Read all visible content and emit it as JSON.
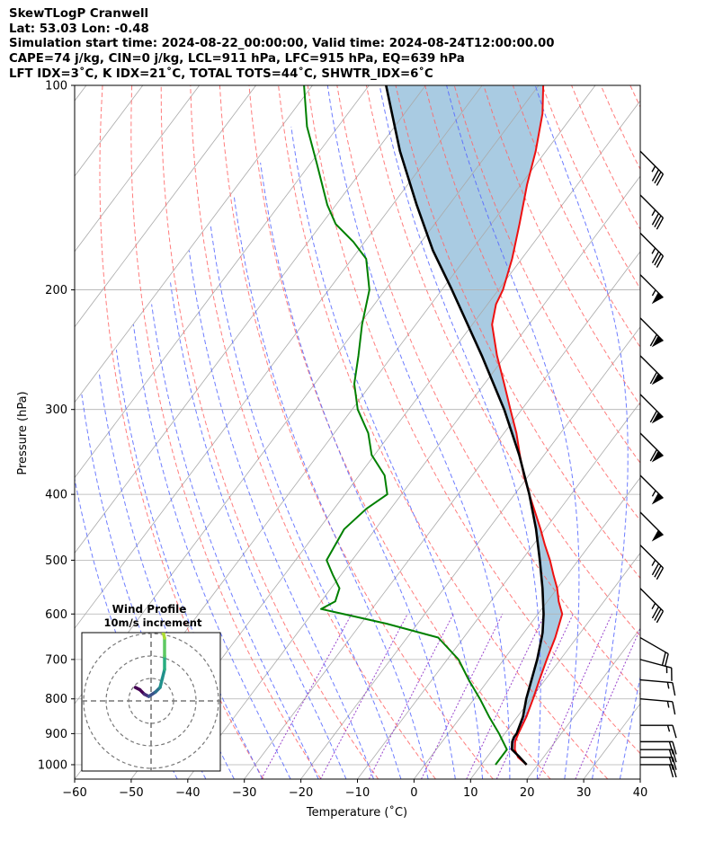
{
  "header": {
    "line1": "SkewTLogP Cranwell",
    "line2": "Lat: 53.03   Lon: -0.48",
    "line3": "Simulation start time: 2024-08-22_00:00:00, Valid time: 2024-08-24T12:00:00.00",
    "line4": "CAPE=74 j/kg, CIN=0 j/kg, LCL=911 hPa, LFC=915 hPa, EQ=639 hPa",
    "line5": "LFT IDX=3˚C, K IDX=21˚C, TOTAL TOTS=44˚C, SHWTR_IDX=6˚C"
  },
  "colors": {
    "temperature": "#ee1111",
    "dewpoint": "#008000",
    "parcel": "#000000",
    "cape_fill": "#a4c8e0",
    "dry_adiabat": "#ff6666",
    "moist_adiabat": "#5566ff",
    "mixing_ratio": "#9944cc",
    "isotherm": "#aaaaaa"
  },
  "chart_data": {
    "type": "skewt",
    "xlabel": "Temperature (˚C)",
    "ylabel": "Pressure (hPa)",
    "xlim": [
      -60,
      40
    ],
    "ylim": [
      1050,
      100
    ],
    "y_scale": "log",
    "grid": true,
    "x_ticks": [
      -60,
      -50,
      -40,
      -30,
      -20,
      -10,
      0,
      10,
      20,
      30,
      40
    ],
    "x_tick_labels": [
      "−60",
      "−50",
      "−40",
      "−30",
      "−20",
      "−10",
      "0",
      "10",
      "20",
      "30",
      "40"
    ],
    "y_ticks": [
      100,
      200,
      300,
      400,
      500,
      600,
      700,
      800,
      900,
      1000
    ],
    "y_tick_labels": [
      "100",
      "200",
      "300",
      "400",
      "500",
      "600",
      "700",
      "800",
      "900",
      "1000"
    ],
    "series": [
      {
        "name": "temperature",
        "points": [
          [
            1000,
            18
          ],
          [
            975,
            15.5
          ],
          [
            950,
            13.9
          ],
          [
            925,
            12.9
          ],
          [
            900,
            12.4
          ],
          [
            850,
            11.6
          ],
          [
            800,
            10.4
          ],
          [
            750,
            9.0
          ],
          [
            700,
            7.6
          ],
          [
            650,
            6.2
          ],
          [
            600,
            4.3
          ],
          [
            575,
            2.0
          ],
          [
            550,
            0.0
          ],
          [
            525,
            -2.5
          ],
          [
            500,
            -5.0
          ],
          [
            475,
            -7.9
          ],
          [
            450,
            -10.8
          ],
          [
            425,
            -14.0
          ],
          [
            400,
            -17.4
          ],
          [
            375,
            -20.9
          ],
          [
            350,
            -24.3
          ],
          [
            325,
            -27.8
          ],
          [
            300,
            -32.0
          ],
          [
            275,
            -36.5
          ],
          [
            250,
            -41.5
          ],
          [
            225,
            -46.5
          ],
          [
            210,
            -48.5
          ],
          [
            200,
            -49.2
          ],
          [
            180,
            -51.7
          ],
          [
            160,
            -55.0
          ],
          [
            140,
            -58.9
          ],
          [
            125,
            -61.8
          ],
          [
            110,
            -65.6
          ],
          [
            100,
            -69.2
          ]
        ]
      },
      {
        "name": "dewpoint",
        "points": [
          [
            1000,
            12.5
          ],
          [
            950,
            12.5
          ],
          [
            900,
            9.0
          ],
          [
            850,
            5.0
          ],
          [
            800,
            1.0
          ],
          [
            750,
            -3.5
          ],
          [
            700,
            -8.0
          ],
          [
            650,
            -14.5
          ],
          [
            620,
            -25.5
          ],
          [
            590,
            -39.0
          ],
          [
            575,
            -37.5
          ],
          [
            550,
            -38.5
          ],
          [
            525,
            -41.5
          ],
          [
            500,
            -44.5
          ],
          [
            450,
            -45.5
          ],
          [
            420,
            -44.3
          ],
          [
            400,
            -42.5
          ],
          [
            375,
            -45.5
          ],
          [
            350,
            -50.5
          ],
          [
            325,
            -54.0
          ],
          [
            300,
            -59.0
          ],
          [
            275,
            -63.0
          ],
          [
            250,
            -66.0
          ],
          [
            225,
            -69.5
          ],
          [
            200,
            -72.8
          ],
          [
            180,
            -77.5
          ],
          [
            170,
            -82.0
          ],
          [
            160,
            -87.5
          ],
          [
            150,
            -91.5
          ],
          [
            130,
            -99.0
          ],
          [
            115,
            -105.5
          ],
          [
            100,
            -111.5
          ]
        ]
      },
      {
        "name": "parcel",
        "points": [
          [
            1000,
            18
          ],
          [
            975,
            15.8
          ],
          [
            950,
            13.4
          ],
          [
            925,
            12.4
          ],
          [
            911,
            12.1
          ],
          [
            900,
            12.1
          ],
          [
            850,
            11.0
          ],
          [
            800,
            9.2
          ],
          [
            750,
            7.6
          ],
          [
            700,
            5.9
          ],
          [
            650,
            3.8
          ],
          [
            639,
            3.3
          ],
          [
            600,
            1.0
          ],
          [
            550,
            -2.6
          ],
          [
            500,
            -6.8
          ],
          [
            450,
            -11.6
          ],
          [
            400,
            -17.4
          ],
          [
            350,
            -24.4
          ],
          [
            300,
            -33.1
          ],
          [
            250,
            -44.2
          ],
          [
            200,
            -58.2
          ],
          [
            175,
            -66.8
          ],
          [
            150,
            -75.7
          ],
          [
            125,
            -85.8
          ],
          [
            100,
            -97.0
          ]
        ]
      }
    ],
    "wind_barbs": [
      {
        "p": 1000,
        "speed_kt": 20,
        "dir": 270
      },
      {
        "p": 975,
        "speed_kt": 20,
        "dir": 270
      },
      {
        "p": 950,
        "speed_kt": 20,
        "dir": 270
      },
      {
        "p": 925,
        "speed_kt": 20,
        "dir": 270
      },
      {
        "p": 875,
        "speed_kt": 15,
        "dir": 270
      },
      {
        "p": 800,
        "speed_kt": 15,
        "dir": 265
      },
      {
        "p": 750,
        "speed_kt": 15,
        "dir": 265
      },
      {
        "p": 700,
        "speed_kt": 15,
        "dir": 255
      },
      {
        "p": 650,
        "speed_kt": 20,
        "dir": 240
      },
      {
        "p": 550,
        "speed_kt": 35,
        "dir": 225
      },
      {
        "p": 475,
        "speed_kt": 35,
        "dir": 225
      },
      {
        "p": 425,
        "speed_kt": 50,
        "dir": 225
      },
      {
        "p": 375,
        "speed_kt": 55,
        "dir": 225
      },
      {
        "p": 325,
        "speed_kt": 60,
        "dir": 225
      },
      {
        "p": 285,
        "speed_kt": 60,
        "dir": 225
      },
      {
        "p": 250,
        "speed_kt": 60,
        "dir": 225
      },
      {
        "p": 220,
        "speed_kt": 60,
        "dir": 225
      },
      {
        "p": 190,
        "speed_kt": 55,
        "dir": 225
      },
      {
        "p": 165,
        "speed_kt": 35,
        "dir": 225
      },
      {
        "p": 145,
        "speed_kt": 35,
        "dir": 225
      },
      {
        "p": 125,
        "speed_kt": 35,
        "dir": 225
      }
    ],
    "hodograph": {
      "title": "Wind Profile",
      "subtitle": "10m/s increment",
      "rings": [
        10,
        20,
        30
      ],
      "points": [
        [
          -7,
          6
        ],
        [
          -5,
          5
        ],
        [
          -3,
          3
        ],
        [
          -1,
          2
        ],
        [
          2,
          4
        ],
        [
          4,
          6
        ],
        [
          5,
          10
        ],
        [
          6,
          14
        ],
        [
          6,
          20
        ],
        [
          6,
          28
        ],
        [
          5,
          32
        ],
        [
          4,
          35
        ]
      ]
    }
  }
}
